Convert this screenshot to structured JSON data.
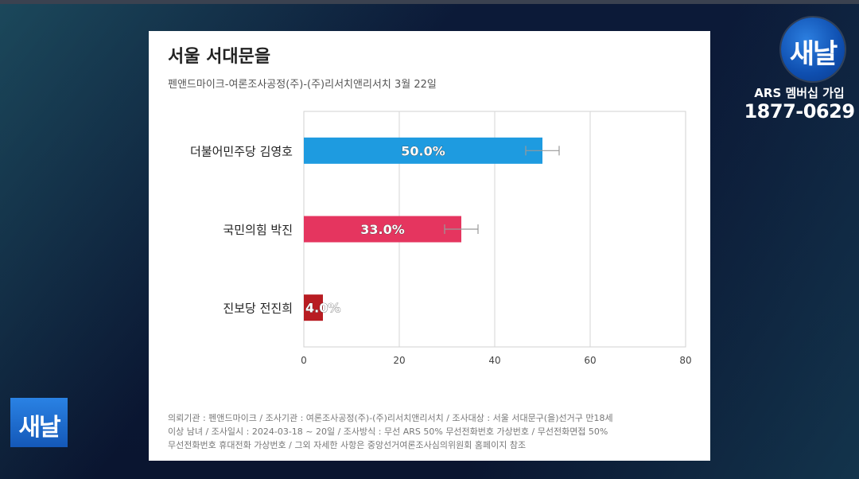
{
  "broadcast": {
    "logo_text": "새날",
    "ars_label": "ARS 멤버십 가입",
    "ars_phone": "1877-0629"
  },
  "card": {
    "title": "서울 서대문을",
    "subtitle": "펜앤드마이크-여론조사공정(주)-(주)리서치앤리서치 3월 22일",
    "note_lines": [
      "의뢰기관 : 펜앤드마이크 / 조사기관 : 여론조사공정(주)-(주)리서치앤리서치 / 조사대상 : 서울 서대문구(을)선거구 만18세",
      "이상 남녀 / 조사일시 : 2024-03-18 ~ 20일 / 조사방식 : 무선 ARS 50% 무선전화번호 가상번호 / 무선전화면접 50%",
      "무선전화번호 휴대전화 가상번호 / 그외 자세한 사항은 중앙선거여론조사심의위원회 홈페이지 참조"
    ]
  },
  "chart_data": {
    "type": "bar",
    "orientation": "horizontal",
    "categories": [
      "더불어민주당 김영호",
      "국민의힘 박진",
      "진보당 전진희"
    ],
    "values": [
      50.0,
      33.0,
      4.0
    ],
    "value_labels": [
      "50.0%",
      "33.0%",
      "4.0%"
    ],
    "error_margin": [
      3.5,
      3.5,
      null
    ],
    "colors": [
      "#1e9be0",
      "#e5355f",
      "#b81c22"
    ],
    "xlim": [
      0,
      80
    ],
    "xticks": [
      0,
      20,
      40,
      60,
      80
    ],
    "grid": true
  }
}
